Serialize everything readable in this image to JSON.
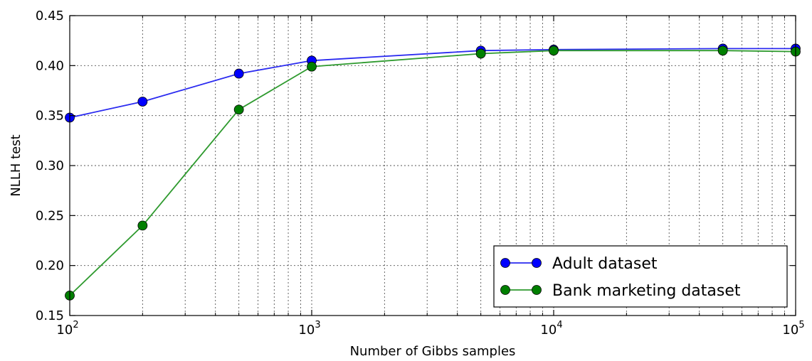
{
  "chart_data": {
    "type": "line",
    "xscale": "log",
    "xlim": [
      100,
      100000
    ],
    "ylim": [
      0.15,
      0.45
    ],
    "xlabel": "Number of Gibbs samples",
    "ylabel": "NLLH test",
    "grid": true,
    "legend_position": "bottom-right",
    "x_ticks": [
      {
        "value": 100,
        "base": "10",
        "exp": "2"
      },
      {
        "value": 1000,
        "base": "10",
        "exp": "3"
      },
      {
        "value": 10000,
        "base": "10",
        "exp": "4"
      },
      {
        "value": 100000,
        "base": "10",
        "exp": "5"
      }
    ],
    "y_ticks": [
      {
        "value": 0.15,
        "label": "0.15"
      },
      {
        "value": 0.2,
        "label": "0.20"
      },
      {
        "value": 0.25,
        "label": "0.25"
      },
      {
        "value": 0.3,
        "label": "0.30"
      },
      {
        "value": 0.35,
        "label": "0.35"
      },
      {
        "value": 0.4,
        "label": "0.40"
      },
      {
        "value": 0.45,
        "label": "0.45"
      }
    ],
    "series": [
      {
        "name": "Adult dataset",
        "color": "#0000ff",
        "line_color": "#2a2af0",
        "x": [
          100,
          200,
          500,
          1000,
          5000,
          10000,
          50000,
          100000
        ],
        "y": [
          0.348,
          0.364,
          0.392,
          0.405,
          0.415,
          0.416,
          0.417,
          0.417
        ]
      },
      {
        "name": "Bank marketing dataset",
        "color": "#007f00",
        "line_color": "#2e9a2e",
        "x": [
          100,
          200,
          500,
          1000,
          5000,
          10000,
          50000,
          100000
        ],
        "y": [
          0.17,
          0.24,
          0.356,
          0.399,
          0.412,
          0.415,
          0.415,
          0.414
        ]
      }
    ]
  }
}
